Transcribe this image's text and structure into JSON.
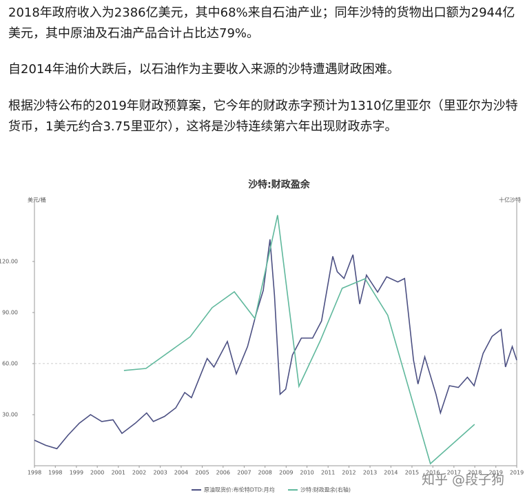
{
  "paragraphs": [
    "2018年政府收入为2386亿美元，其中68%来自石油产业；同年沙特的货物出口额为2944亿美元，其中原油及石油产品合计占比达79%。",
    "自2014年油价大跌后，以石油作为主要收入来源的沙特遭遇财政困难。",
    "根据沙特公布的2019年财政预算案，它今年的财政赤字预计为1310亿里亚尔（里亚尔为沙特货币，1美元约合3.75里亚尔），这将是沙特连续第六年出现财政赤字。"
  ],
  "watermark": "知乎 @段子狗",
  "chart_data": {
    "type": "line",
    "title": "沙特:财政盈余",
    "ylabel": "美元/桶",
    "y2label": "十亿沙特",
    "xlim": [
      1998,
      2019.5
    ],
    "xticks": [
      {
        "value": 1998.0,
        "label": "1998"
      },
      {
        "value": 1998.93,
        "label": "1998"
      },
      {
        "value": 1999.87,
        "label": "1999"
      },
      {
        "value": 2000.8,
        "label": "2000"
      },
      {
        "value": 2001.74,
        "label": "2001"
      },
      {
        "value": 2002.67,
        "label": "2002"
      },
      {
        "value": 2003.61,
        "label": "2003"
      },
      {
        "value": 2004.54,
        "label": "2004"
      },
      {
        "value": 2005.48,
        "label": "2005"
      },
      {
        "value": 2006.41,
        "label": "2006"
      },
      {
        "value": 2007.35,
        "label": "2007"
      },
      {
        "value": 2008.28,
        "label": "2008"
      },
      {
        "value": 2009.22,
        "label": "2009"
      },
      {
        "value": 2010.15,
        "label": "2010"
      },
      {
        "value": 2011.09,
        "label": "2011"
      },
      {
        "value": 2012.02,
        "label": "2012"
      },
      {
        "value": 2012.96,
        "label": "2013"
      },
      {
        "value": 2013.89,
        "label": "2014"
      },
      {
        "value": 2014.83,
        "label": "2015"
      },
      {
        "value": 2015.76,
        "label": "2016"
      },
      {
        "value": 2016.7,
        "label": "2017"
      },
      {
        "value": 2017.63,
        "label": "2018"
      },
      {
        "value": 2018.57,
        "label": "2019"
      },
      {
        "value": 2019.5,
        "label": "2019"
      }
    ],
    "ylim": [
      0,
      152
    ],
    "yticks": [
      {
        "value": 30,
        "label": "30.00"
      },
      {
        "value": 60,
        "label": "60.00"
      },
      {
        "value": 90,
        "label": "90.00"
      },
      {
        "value": 120,
        "label": "120.00"
      }
    ],
    "y2lim": [
      -400,
      613
    ],
    "series": [
      {
        "name": "原油现货价:布伦特DTD:月均",
        "color": "#4b4f82",
        "x": [
          1998.0,
          1998.5,
          1999.0,
          1999.5,
          2000.0,
          2000.5,
          2001.0,
          2001.5,
          2001.9,
          2002.5,
          2003.0,
          2003.3,
          2003.8,
          2004.3,
          2004.7,
          2005.0,
          2005.7,
          2006.0,
          2006.6,
          2007.0,
          2007.5,
          2007.9,
          2008.2,
          2008.5,
          2008.7,
          2008.95,
          2009.2,
          2009.5,
          2009.9,
          2010.4,
          2010.8,
          2011.3,
          2011.5,
          2011.8,
          2012.2,
          2012.5,
          2012.8,
          2013.3,
          2013.7,
          2014.2,
          2014.5,
          2014.9,
          2015.1,
          2015.4,
          2015.9,
          2016.1,
          2016.5,
          2016.9,
          2017.3,
          2017.6,
          2018.0,
          2018.4,
          2018.8,
          2019.0,
          2019.3,
          2019.5
        ],
        "values": [
          15,
          12,
          10,
          18,
          25,
          30,
          26,
          27,
          19,
          25,
          31,
          26,
          29,
          34,
          43,
          40,
          63,
          58,
          73,
          54,
          70,
          90,
          103,
          133,
          100,
          42,
          45,
          65,
          75,
          75,
          85,
          123,
          114,
          110,
          124,
          95,
          112,
          102,
          111,
          108,
          110,
          62,
          48,
          64,
          42,
          31,
          47,
          46,
          52,
          47,
          66,
          76,
          80,
          58,
          70,
          62
        ]
      },
      {
        "name": "沙特:财政盈余(右轴)",
        "color": "#5fb89c",
        "axis": "y2",
        "x": [
          2001.99,
          2002.97,
          2004.94,
          2005.92,
          2006.91,
          2007.83,
          2008.84,
          2009.79,
          2010.74,
          2011.72,
          2012.74,
          2013.75,
          2015.65,
          2017.62
        ],
        "values": [
          -27,
          -19,
          105,
          219,
          281,
          176,
          581,
          -89,
          89,
          295,
          332,
          189,
          -392,
          -238
        ]
      }
    ]
  }
}
